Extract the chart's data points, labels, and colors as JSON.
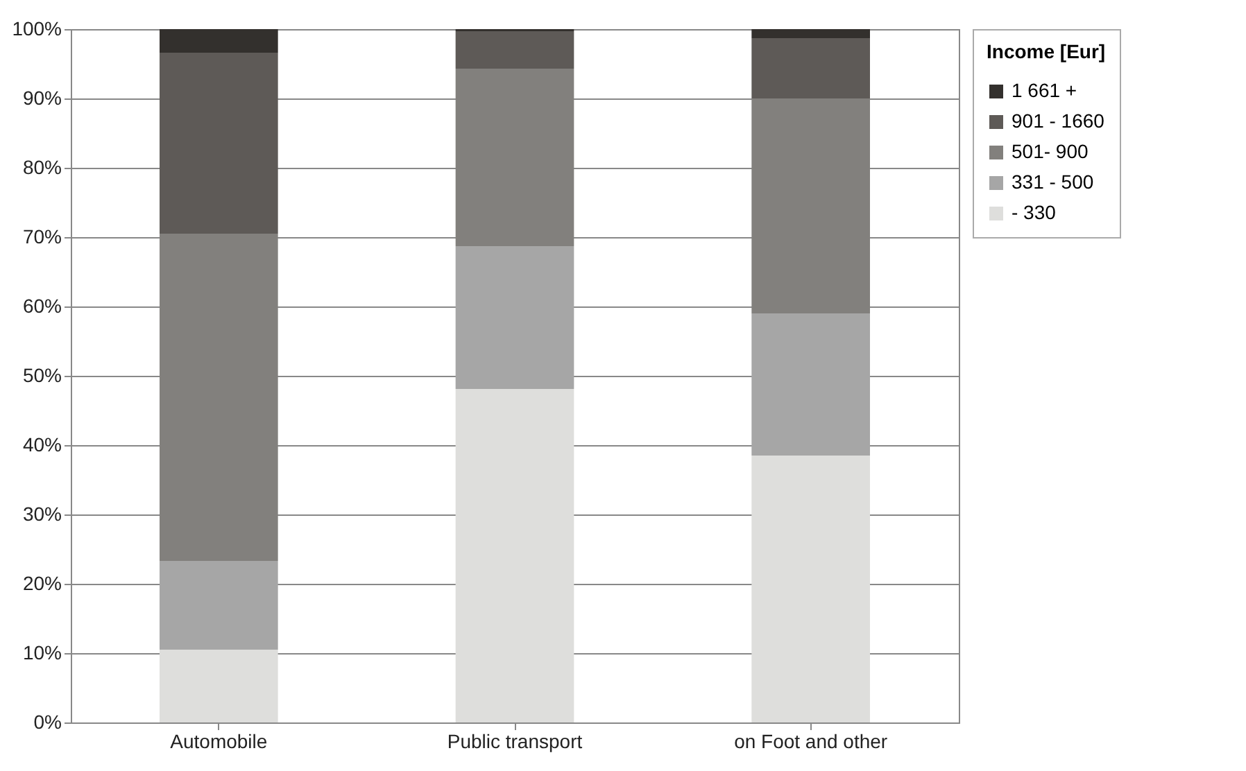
{
  "chart_data": {
    "type": "bar",
    "stacked": true,
    "legend_title": "Income [Eur]",
    "legend": "right",
    "grid": "y",
    "categories": [
      "Automobile",
      "Public transport",
      "on Foot and other"
    ],
    "series": [
      {
        "name": "- 330",
        "color": "#dededc",
        "values": [
          10.5,
          48.1,
          38.5
        ]
      },
      {
        "name": "331 - 500",
        "color": "#a6a6a6",
        "values": [
          12.8,
          20.6,
          20.5
        ]
      },
      {
        "name": "501- 900",
        "color": "#82807d",
        "values": [
          47.2,
          25.6,
          31.0
        ]
      },
      {
        "name": "901 - 1660",
        "color": "#5e5a57",
        "values": [
          26.1,
          5.4,
          8.7
        ]
      },
      {
        "name": "1 661 +",
        "color": "#33302d",
        "values": [
          3.4,
          0.3,
          1.3
        ]
      }
    ],
    "ylim": [
      0,
      100
    ],
    "yticks": [
      {
        "value": 0,
        "label": "0%"
      },
      {
        "value": 10,
        "label": "10%"
      },
      {
        "value": 20,
        "label": "20%"
      },
      {
        "value": 30,
        "label": "30%"
      },
      {
        "value": 40,
        "label": "40%"
      },
      {
        "value": 50,
        "label": "50%"
      },
      {
        "value": 60,
        "label": "60%"
      },
      {
        "value": 70,
        "label": "70%"
      },
      {
        "value": 80,
        "label": "80%"
      },
      {
        "value": 90,
        "label": "90%"
      },
      {
        "value": 100,
        "label": "100%"
      }
    ]
  }
}
